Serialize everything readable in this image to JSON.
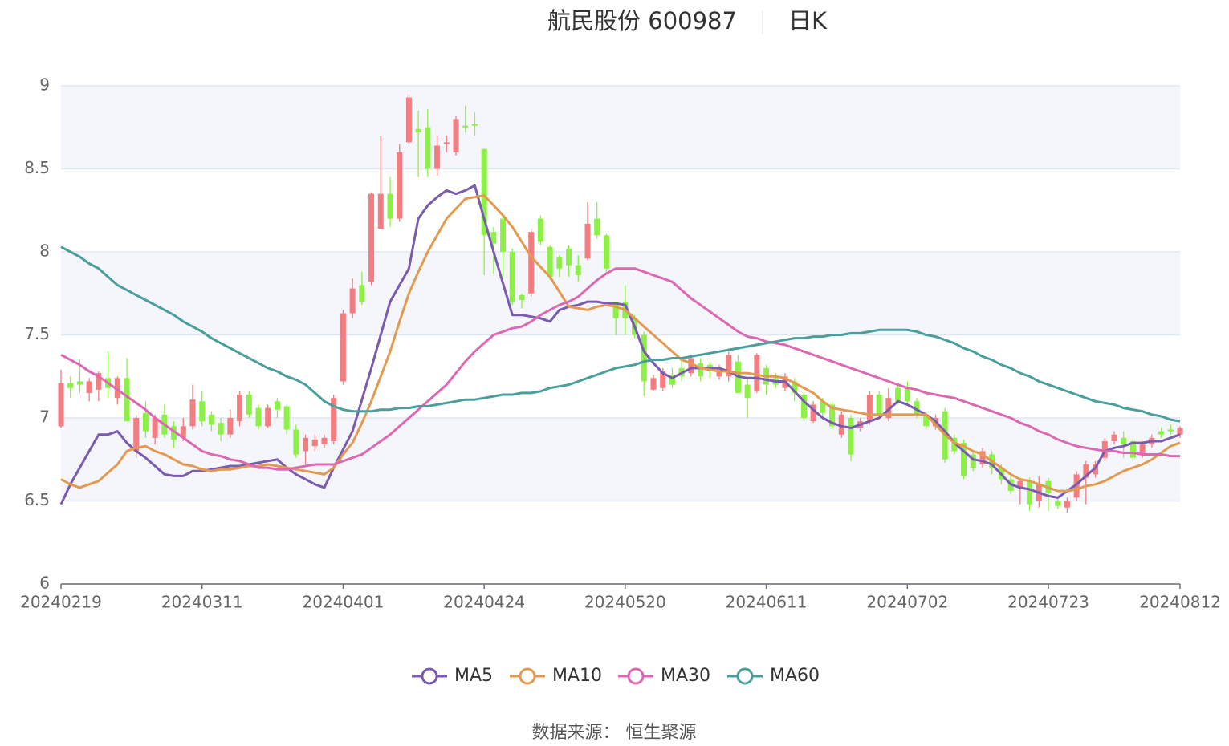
{
  "chart_data": {
    "type": "candlestick",
    "title": "航民股份 600987",
    "subtitle": "日K",
    "source": "数据来源： 恒生聚源",
    "categories": [
      "20240219",
      null,
      null,
      null,
      null,
      null,
      null,
      null,
      null,
      null,
      null,
      null,
      null,
      null,
      null,
      "20240311",
      null,
      null,
      null,
      null,
      null,
      null,
      null,
      null,
      null,
      null,
      null,
      null,
      null,
      null,
      "20240401",
      null,
      null,
      null,
      null,
      null,
      null,
      null,
      null,
      null,
      null,
      null,
      null,
      null,
      null,
      "20240424",
      null,
      null,
      null,
      null,
      null,
      null,
      null,
      null,
      null,
      null,
      null,
      null,
      null,
      null,
      "20240520",
      null,
      null,
      null,
      null,
      null,
      null,
      null,
      null,
      null,
      null,
      null,
      null,
      null,
      null,
      "20240611",
      null,
      null,
      null,
      null,
      null,
      null,
      null,
      null,
      null,
      null,
      null,
      null,
      null,
      null,
      "20240702",
      null,
      null,
      null,
      null,
      null,
      null,
      null,
      null,
      null,
      null,
      null,
      null,
      null,
      null,
      "20240723",
      null,
      null,
      null,
      null,
      null,
      null,
      null,
      null,
      null,
      null,
      null,
      null,
      null,
      "20240812"
    ],
    "open": [
      6.95,
      7.21,
      7.22,
      7.15,
      7.17,
      7.24,
      7.12,
      7.24,
      6.8,
      7.03,
      6.88,
      7.02,
      6.95,
      6.88,
      6.95,
      7.1,
      7.02,
      6.97,
      6.9,
      6.98,
      7.14,
      7.06,
      6.95,
      7.1,
      7.07,
      6.93,
      6.8,
      6.83,
      6.84,
      6.86,
      7.22,
      7.63,
      7.8,
      7.82,
      8.14,
      8.35,
      8.2,
      8.66,
      8.74,
      8.75,
      8.5,
      8.65,
      8.6,
      8.76,
      8.77,
      8.62,
      8.12,
      8.2,
      8.0,
      7.74,
      7.75,
      8.2,
      8.03,
      7.97,
      8.02,
      7.92,
      7.96,
      8.2,
      8.1,
      7.7,
      7.7,
      7.6,
      7.5,
      7.17,
      7.18,
      7.26,
      7.3,
      7.27,
      7.33,
      7.32,
      7.25,
      7.25,
      7.34,
      7.2,
      7.16,
      7.3,
      7.24,
      7.18,
      7.22,
      7.14,
      6.98,
      7.1,
      7.08,
      6.9,
      7.0,
      6.94,
      6.98,
      7.14,
      7.0,
      7.18,
      7.18,
      7.1,
      7.02,
      6.95,
      7.04,
      6.88,
      6.85,
      6.78,
      6.72,
      6.78,
      6.7,
      6.63,
      6.58,
      6.62,
      6.5,
      6.62,
      6.5,
      6.46,
      6.52,
      6.64,
      6.66,
      6.76,
      6.86,
      6.88,
      6.86,
      6.78,
      6.84,
      6.92,
      6.93,
      6.9
    ],
    "close": [
      7.21,
      7.18,
      7.2,
      7.22,
      7.27,
      7.18,
      7.24,
      6.98,
      7.0,
      6.92,
      7.0,
      6.9,
      6.87,
      6.95,
      7.11,
      6.98,
      6.96,
      6.9,
      7.0,
      7.14,
      7.02,
      6.95,
      7.06,
      7.05,
      6.93,
      6.78,
      6.88,
      6.87,
      6.88,
      7.12,
      7.63,
      7.78,
      7.7,
      8.35,
      8.35,
      8.2,
      8.6,
      8.93,
      8.72,
      8.5,
      8.64,
      8.66,
      8.8,
      8.75,
      8.76,
      8.1,
      8.05,
      8.0,
      7.7,
      7.71,
      8.12,
      8.06,
      7.85,
      7.9,
      7.92,
      7.86,
      8.17,
      8.1,
      7.9,
      7.6,
      7.6,
      7.5,
      7.22,
      7.24,
      7.28,
      7.2,
      7.25,
      7.36,
      7.25,
      7.28,
      7.3,
      7.38,
      7.15,
      7.12,
      7.38,
      7.2,
      7.2,
      7.25,
      7.15,
      7.0,
      7.08,
      7.03,
      6.95,
      7.02,
      6.78,
      6.98,
      7.14,
      7.02,
      7.12,
      7.1,
      7.1,
      7.02,
      6.95,
      7.0,
      6.75,
      6.8,
      6.65,
      6.7,
      6.8,
      6.7,
      6.63,
      6.56,
      6.62,
      6.48,
      6.6,
      6.55,
      6.47,
      6.5,
      6.66,
      6.72,
      6.72,
      6.86,
      6.9,
      6.84,
      6.76,
      6.84,
      6.88,
      6.9,
      6.92,
      6.94
    ],
    "high": [
      7.29,
      7.25,
      7.35,
      7.24,
      7.28,
      7.4,
      7.25,
      7.36,
      7.02,
      7.1,
      7.02,
      7.08,
      6.98,
      7.0,
      7.2,
      7.16,
      7.04,
      7.0,
      7.05,
      7.16,
      7.16,
      7.08,
      7.08,
      7.12,
      7.08,
      6.96,
      6.9,
      6.9,
      6.9,
      7.14,
      7.65,
      7.84,
      7.88,
      8.36,
      8.7,
      8.45,
      8.65,
      8.95,
      8.85,
      8.86,
      8.7,
      8.7,
      8.82,
      8.88,
      8.84,
      8.62,
      8.15,
      8.22,
      8.02,
      7.75,
      8.14,
      8.22,
      8.04,
      7.98,
      8.04,
      7.98,
      8.3,
      8.3,
      8.11,
      7.7,
      7.8,
      7.62,
      7.52,
      7.26,
      7.3,
      7.3,
      7.36,
      7.38,
      7.36,
      7.34,
      7.32,
      7.4,
      7.38,
      7.24,
      7.39,
      7.32,
      7.27,
      7.27,
      7.24,
      7.16,
      7.1,
      7.12,
      7.1,
      7.04,
      7.02,
      7.0,
      7.16,
      7.16,
      7.18,
      7.2,
      7.22,
      7.12,
      7.04,
      7.02,
      7.06,
      6.9,
      6.87,
      6.8,
      6.82,
      6.8,
      6.72,
      6.66,
      6.64,
      6.64,
      6.65,
      6.64,
      6.52,
      6.52,
      6.68,
      6.74,
      6.74,
      6.88,
      6.92,
      6.92,
      6.88,
      6.86,
      6.9,
      6.94,
      6.96,
      6.95
    ],
    "low": [
      6.94,
      7.12,
      7.15,
      7.1,
      7.1,
      7.12,
      7.08,
      6.98,
      6.76,
      6.88,
      6.84,
      6.88,
      6.82,
      6.86,
      6.93,
      6.95,
      6.92,
      6.86,
      6.88,
      6.95,
      7.0,
      6.93,
      6.94,
      7.0,
      6.9,
      6.76,
      6.72,
      6.8,
      6.82,
      6.84,
      7.2,
      7.6,
      7.68,
      7.8,
      8.14,
      8.15,
      8.18,
      8.65,
      8.45,
      8.45,
      8.46,
      8.6,
      8.58,
      8.72,
      8.7,
      7.86,
      7.87,
      7.85,
      7.68,
      7.66,
      7.73,
      8.04,
      7.83,
      7.85,
      7.85,
      7.82,
      7.95,
      8.08,
      7.88,
      7.5,
      7.5,
      7.48,
      7.13,
      7.16,
      7.16,
      7.18,
      7.22,
      7.25,
      7.22,
      7.24,
      7.23,
      7.22,
      7.15,
      7.0,
      7.15,
      7.14,
      7.18,
      7.16,
      7.1,
      6.98,
      6.97,
      7.0,
      6.93,
      6.88,
      6.74,
      6.92,
      6.96,
      7.0,
      6.98,
      7.08,
      7.08,
      7.0,
      6.93,
      6.93,
      6.73,
      6.78,
      6.63,
      6.68,
      6.7,
      6.66,
      6.6,
      6.54,
      6.48,
      6.44,
      6.46,
      6.44,
      6.45,
      6.43,
      6.5,
      6.48,
      6.64,
      6.74,
      6.84,
      6.76,
      6.74,
      6.76,
      6.82,
      6.88,
      6.9,
      6.88
    ],
    "up_color": "#f37d80",
    "down_color": "#8cf046",
    "series": [
      {
        "name": "MA5",
        "color": "#7a5bb0",
        "values": [
          6.48,
          6.6,
          6.7,
          6.8,
          6.9,
          6.9,
          6.92,
          6.85,
          6.8,
          6.76,
          6.71,
          6.66,
          6.65,
          6.65,
          6.68,
          6.68,
          6.69,
          6.7,
          6.71,
          6.71,
          6.72,
          6.73,
          6.74,
          6.75,
          6.7,
          6.66,
          6.63,
          6.6,
          6.58,
          6.7,
          6.81,
          6.92,
          7.11,
          7.3,
          7.5,
          7.7,
          7.8,
          7.9,
          8.2,
          8.28,
          8.33,
          8.37,
          8.35,
          8.37,
          8.4,
          8.2,
          8.0,
          7.81,
          7.62,
          7.62,
          7.61,
          7.6,
          7.58,
          7.65,
          7.67,
          7.68,
          7.7,
          7.7,
          7.69,
          7.69,
          7.68,
          7.55,
          7.4,
          7.33,
          7.27,
          7.24,
          7.27,
          7.3,
          7.3,
          7.3,
          7.3,
          7.28,
          7.25,
          7.24,
          7.24,
          7.23,
          7.22,
          7.22,
          7.16,
          7.1,
          7.05,
          7.0,
          6.97,
          6.95,
          6.94,
          6.96,
          6.98,
          7.0,
          7.05,
          7.1,
          7.08,
          7.05,
          7.02,
          6.98,
          6.92,
          6.85,
          6.8,
          6.75,
          6.74,
          6.72,
          6.66,
          6.6,
          6.58,
          6.57,
          6.55,
          6.53,
          6.52,
          6.56,
          6.6,
          6.65,
          6.7,
          6.8,
          6.82,
          6.83,
          6.85,
          6.85,
          6.86,
          6.86,
          6.88,
          6.9
        ]
      },
      {
        "name": "MA10",
        "color": "#e39a50",
        "values": [
          6.63,
          6.6,
          6.58,
          6.6,
          6.62,
          6.67,
          6.72,
          6.8,
          6.82,
          6.83,
          6.8,
          6.78,
          6.75,
          6.72,
          6.71,
          6.69,
          6.68,
          6.69,
          6.69,
          6.7,
          6.71,
          6.71,
          6.72,
          6.71,
          6.7,
          6.69,
          6.68,
          6.67,
          6.66,
          6.7,
          6.78,
          6.85,
          6.97,
          7.1,
          7.25,
          7.4,
          7.58,
          7.75,
          7.88,
          8.0,
          8.1,
          8.2,
          8.26,
          8.32,
          8.33,
          8.34,
          8.28,
          8.22,
          8.15,
          8.06,
          7.97,
          7.91,
          7.85,
          7.76,
          7.67,
          7.66,
          7.65,
          7.67,
          7.68,
          7.67,
          7.65,
          7.6,
          7.55,
          7.5,
          7.45,
          7.4,
          7.35,
          7.33,
          7.3,
          7.29,
          7.28,
          7.28,
          7.27,
          7.27,
          7.26,
          7.25,
          7.25,
          7.24,
          7.21,
          7.18,
          7.15,
          7.1,
          7.06,
          7.05,
          7.04,
          7.03,
          7.02,
          7.02,
          7.02,
          7.02,
          7.02,
          7.02,
          7.02,
          6.96,
          6.9,
          6.85,
          6.83,
          6.8,
          6.78,
          6.74,
          6.7,
          6.66,
          6.63,
          6.62,
          6.6,
          6.58,
          6.56,
          6.56,
          6.57,
          6.59,
          6.6,
          6.62,
          6.65,
          6.68,
          6.7,
          6.72,
          6.75,
          6.79,
          6.83,
          6.85
        ]
      },
      {
        "name": "MA30",
        "color": "#dd68b2",
        "values": [
          7.38,
          7.35,
          7.32,
          7.28,
          7.25,
          7.21,
          7.17,
          7.13,
          7.09,
          7.05,
          7.0,
          6.96,
          6.92,
          6.88,
          6.84,
          6.8,
          6.78,
          6.77,
          6.75,
          6.74,
          6.72,
          6.7,
          6.7,
          6.69,
          6.69,
          6.7,
          6.71,
          6.72,
          6.72,
          6.72,
          6.74,
          6.76,
          6.78,
          6.82,
          6.86,
          6.9,
          6.95,
          7.0,
          7.05,
          7.1,
          7.15,
          7.2,
          7.27,
          7.34,
          7.4,
          7.45,
          7.5,
          7.52,
          7.54,
          7.55,
          7.58,
          7.62,
          7.65,
          7.68,
          7.7,
          7.73,
          7.78,
          7.83,
          7.87,
          7.9,
          7.9,
          7.9,
          7.88,
          7.86,
          7.84,
          7.82,
          7.77,
          7.72,
          7.68,
          7.64,
          7.6,
          7.56,
          7.52,
          7.49,
          7.48,
          7.46,
          7.45,
          7.44,
          7.42,
          7.4,
          7.38,
          7.36,
          7.34,
          7.32,
          7.3,
          7.28,
          7.26,
          7.24,
          7.22,
          7.2,
          7.18,
          7.17,
          7.15,
          7.14,
          7.13,
          7.12,
          7.1,
          7.08,
          7.06,
          7.04,
          7.02,
          7.0,
          6.97,
          6.95,
          6.92,
          6.9,
          6.87,
          6.85,
          6.83,
          6.82,
          6.81,
          6.8,
          6.8,
          6.79,
          6.79,
          6.78,
          6.78,
          6.78,
          6.77,
          6.77
        ]
      },
      {
        "name": "MA60",
        "color": "#4a9f9d",
        "values": [
          8.03,
          8.0,
          7.97,
          7.93,
          7.9,
          7.85,
          7.8,
          7.77,
          7.74,
          7.71,
          7.68,
          7.65,
          7.62,
          7.58,
          7.55,
          7.52,
          7.48,
          7.45,
          7.42,
          7.39,
          7.36,
          7.33,
          7.3,
          7.28,
          7.25,
          7.23,
          7.2,
          7.15,
          7.1,
          7.07,
          7.05,
          7.04,
          7.04,
          7.04,
          7.05,
          7.05,
          7.06,
          7.06,
          7.07,
          7.07,
          7.08,
          7.09,
          7.1,
          7.11,
          7.11,
          7.12,
          7.13,
          7.14,
          7.14,
          7.15,
          7.15,
          7.16,
          7.18,
          7.19,
          7.2,
          7.22,
          7.24,
          7.26,
          7.28,
          7.3,
          7.31,
          7.32,
          7.34,
          7.35,
          7.35,
          7.36,
          7.36,
          7.37,
          7.38,
          7.39,
          7.4,
          7.41,
          7.42,
          7.43,
          7.44,
          7.45,
          7.46,
          7.47,
          7.48,
          7.48,
          7.49,
          7.49,
          7.5,
          7.5,
          7.51,
          7.51,
          7.52,
          7.53,
          7.53,
          7.53,
          7.53,
          7.52,
          7.5,
          7.49,
          7.47,
          7.45,
          7.42,
          7.4,
          7.37,
          7.35,
          7.32,
          7.3,
          7.27,
          7.25,
          7.22,
          7.2,
          7.18,
          7.16,
          7.14,
          7.12,
          7.1,
          7.09,
          7.08,
          7.06,
          7.05,
          7.04,
          7.02,
          7.01,
          6.99,
          6.98
        ]
      }
    ],
    "ylim": [
      6,
      9
    ],
    "yticks": [
      6,
      6.5,
      7,
      7.5,
      8,
      8.5,
      9
    ],
    "grid": true
  }
}
